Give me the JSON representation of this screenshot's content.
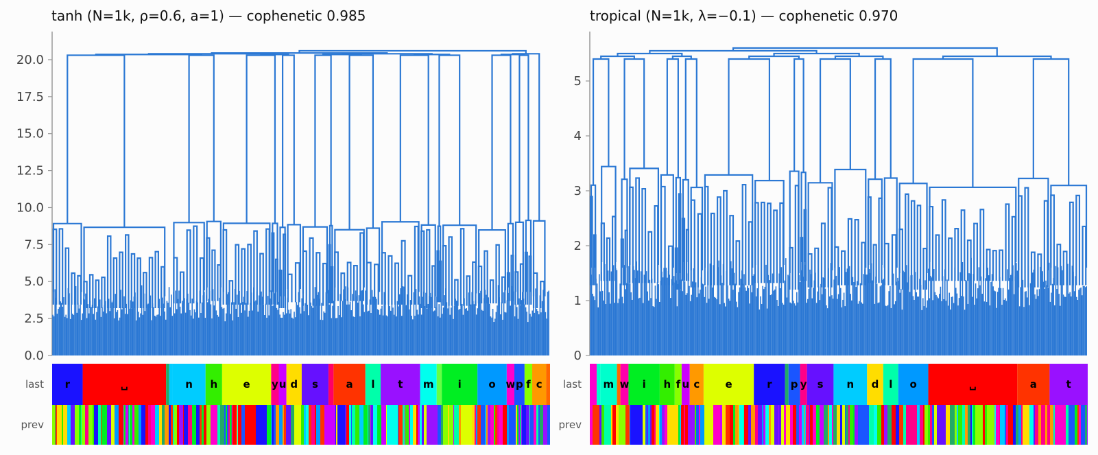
{
  "chart_data": [
    {
      "type": "dendrogram",
      "title": "tanh (N=1k, ρ=0.6, a=1) — cophenetic 0.985",
      "ylim": [
        0,
        21.9
      ],
      "yticks": [
        "0.0",
        "2.5",
        "5.0",
        "7.5",
        "10.0",
        "12.5",
        "15.0",
        "17.5",
        "20.0"
      ],
      "ytick_values": [
        0,
        2.5,
        5,
        7.5,
        10,
        12.5,
        15,
        17.5,
        20
      ],
      "line_color": "#2b78d4",
      "top_merge_heights": [
        20.6,
        20.3,
        20.2,
        20.1,
        20.0,
        19.9,
        19.8,
        19.7
      ],
      "cluster_band_heights": [
        9.0,
        8.8,
        8.6,
        9.3,
        8.9,
        9.0,
        8.9,
        8.8,
        9.0,
        8.9,
        9.0
      ],
      "leaf_band_heights": [
        4.3,
        4.0,
        4.5,
        4.2,
        4.4,
        4.6,
        4.3
      ],
      "leaf_count": 1000,
      "strip_rows": [
        "last",
        "prev"
      ],
      "last_segments": [
        {
          "label": "r",
          "color": "#1a12ff",
          "width": 4.8
        },
        {
          "label": "␣",
          "color": "#ff0000",
          "width": 13.1
        },
        {
          "label": "",
          "color": "#22aa66",
          "width": 0.5
        },
        {
          "label": "",
          "color": "#00ccff",
          "width": 0.5
        },
        {
          "label": "n",
          "color": "#00ccff",
          "width": 5.2
        },
        {
          "label": "h",
          "color": "#33ee00",
          "width": 2.6
        },
        {
          "label": "e",
          "color": "#ddff00",
          "width": 7.7
        },
        {
          "label": "y",
          "color": "#ff0088",
          "width": 1.2
        },
        {
          "label": "u",
          "color": "#cc00ff",
          "width": 1.2
        },
        {
          "label": "d",
          "color": "#ffdd00",
          "width": 2.4
        },
        {
          "label": "s",
          "color": "#6611ff",
          "width": 4.2
        },
        {
          "label": "",
          "color": "#ff0066",
          "width": 0.8
        },
        {
          "label": "a",
          "color": "#ff3300",
          "width": 5.0
        },
        {
          "label": "l",
          "color": "#00ffaa",
          "width": 2.4
        },
        {
          "label": "t",
          "color": "#9911ff",
          "width": 6.2
        },
        {
          "label": "m",
          "color": "#00ffee",
          "width": 2.6
        },
        {
          "label": "",
          "color": "#66ff44",
          "width": 0.8
        },
        {
          "label": "i",
          "color": "#00ee22",
          "width": 5.6
        },
        {
          "label": "o",
          "color": "#0099ff",
          "width": 4.6
        },
        {
          "label": "w",
          "color": "#ff00cc",
          "width": 1.2
        },
        {
          "label": "p",
          "color": "#1a55ff",
          "width": 1.6
        },
        {
          "label": "f",
          "color": "#88ff00",
          "width": 1.2
        },
        {
          "label": "c",
          "color": "#ff9900",
          "width": 2.2
        },
        {
          "label": "",
          "color": "#ff6600",
          "width": 0.6
        }
      ]
    },
    {
      "type": "dendrogram",
      "title": "tropical (N=1k, λ=−0.1) — cophenetic 0.970",
      "ylim": [
        0,
        5.9
      ],
      "yticks": [
        "0",
        "1",
        "2",
        "3",
        "4",
        "5"
      ],
      "ytick_values": [
        0,
        1,
        2,
        3,
        4,
        5
      ],
      "line_color": "#2b78d4",
      "top_merge_heights": [
        5.6,
        5.4,
        5.35,
        5.3,
        5.28,
        5.25,
        5.2,
        5.15
      ],
      "cluster_band_heights": [
        3.2,
        3.1,
        3.4,
        3.3,
        3.25,
        3.5,
        3.3,
        3.2,
        3.25,
        3.15,
        3.3
      ],
      "leaf_band_heights": [
        1.6,
        1.5,
        1.7,
        1.55,
        1.6,
        1.65
      ],
      "leaf_count": 1000,
      "strip_rows": [
        "last",
        "prev"
      ],
      "last_segments": [
        {
          "label": "",
          "color": "#ff00cc",
          "width": 1.2
        },
        {
          "label": "",
          "color": "#00ffcc",
          "width": 0.6
        },
        {
          "label": "m",
          "color": "#00ffcc",
          "width": 2.9
        },
        {
          "label": "",
          "color": "#ff6600",
          "width": 0.6
        },
        {
          "label": "w",
          "color": "#ff00aa",
          "width": 1.4
        },
        {
          "label": "i",
          "color": "#00ee22",
          "width": 5.4
        },
        {
          "label": "h",
          "color": "#33ee00",
          "width": 2.6
        },
        {
          "label": "f",
          "color": "#88ff00",
          "width": 1.2
        },
        {
          "label": "u",
          "color": "#cc00ff",
          "width": 1.4
        },
        {
          "label": "c",
          "color": "#ff9900",
          "width": 2.4
        },
        {
          "label": "e",
          "color": "#ddff00",
          "width": 8.7
        },
        {
          "label": "r",
          "color": "#1a12ff",
          "width": 5.4
        },
        {
          "label": "",
          "color": "#22aa66",
          "width": 0.6
        },
        {
          "label": "p",
          "color": "#1a55ff",
          "width": 2.0
        },
        {
          "label": "y",
          "color": "#ff0088",
          "width": 1.2
        },
        {
          "label": "s",
          "color": "#6611ff",
          "width": 4.6
        },
        {
          "label": "n",
          "color": "#00ccff",
          "width": 5.8
        },
        {
          "label": "d",
          "color": "#ffdd00",
          "width": 2.8
        },
        {
          "label": "l",
          "color": "#00ffaa",
          "width": 2.6
        },
        {
          "label": "o",
          "color": "#0099ff",
          "width": 5.2
        },
        {
          "label": "␣",
          "color": "#ff0000",
          "width": 15.4
        },
        {
          "label": "a",
          "color": "#ff3300",
          "width": 5.6
        },
        {
          "label": "t",
          "color": "#9911ff",
          "width": 6.6
        }
      ]
    }
  ],
  "prev_palette": [
    "#ff0000",
    "#ff3300",
    "#ff9900",
    "#ffdd00",
    "#ddff00",
    "#88ff00",
    "#33ee00",
    "#00ee22",
    "#00ffaa",
    "#00ffee",
    "#00ccff",
    "#0099ff",
    "#1a55ff",
    "#1a12ff",
    "#6611ff",
    "#9911ff",
    "#cc00ff",
    "#ff00cc",
    "#ff0088",
    "#22aa66"
  ]
}
